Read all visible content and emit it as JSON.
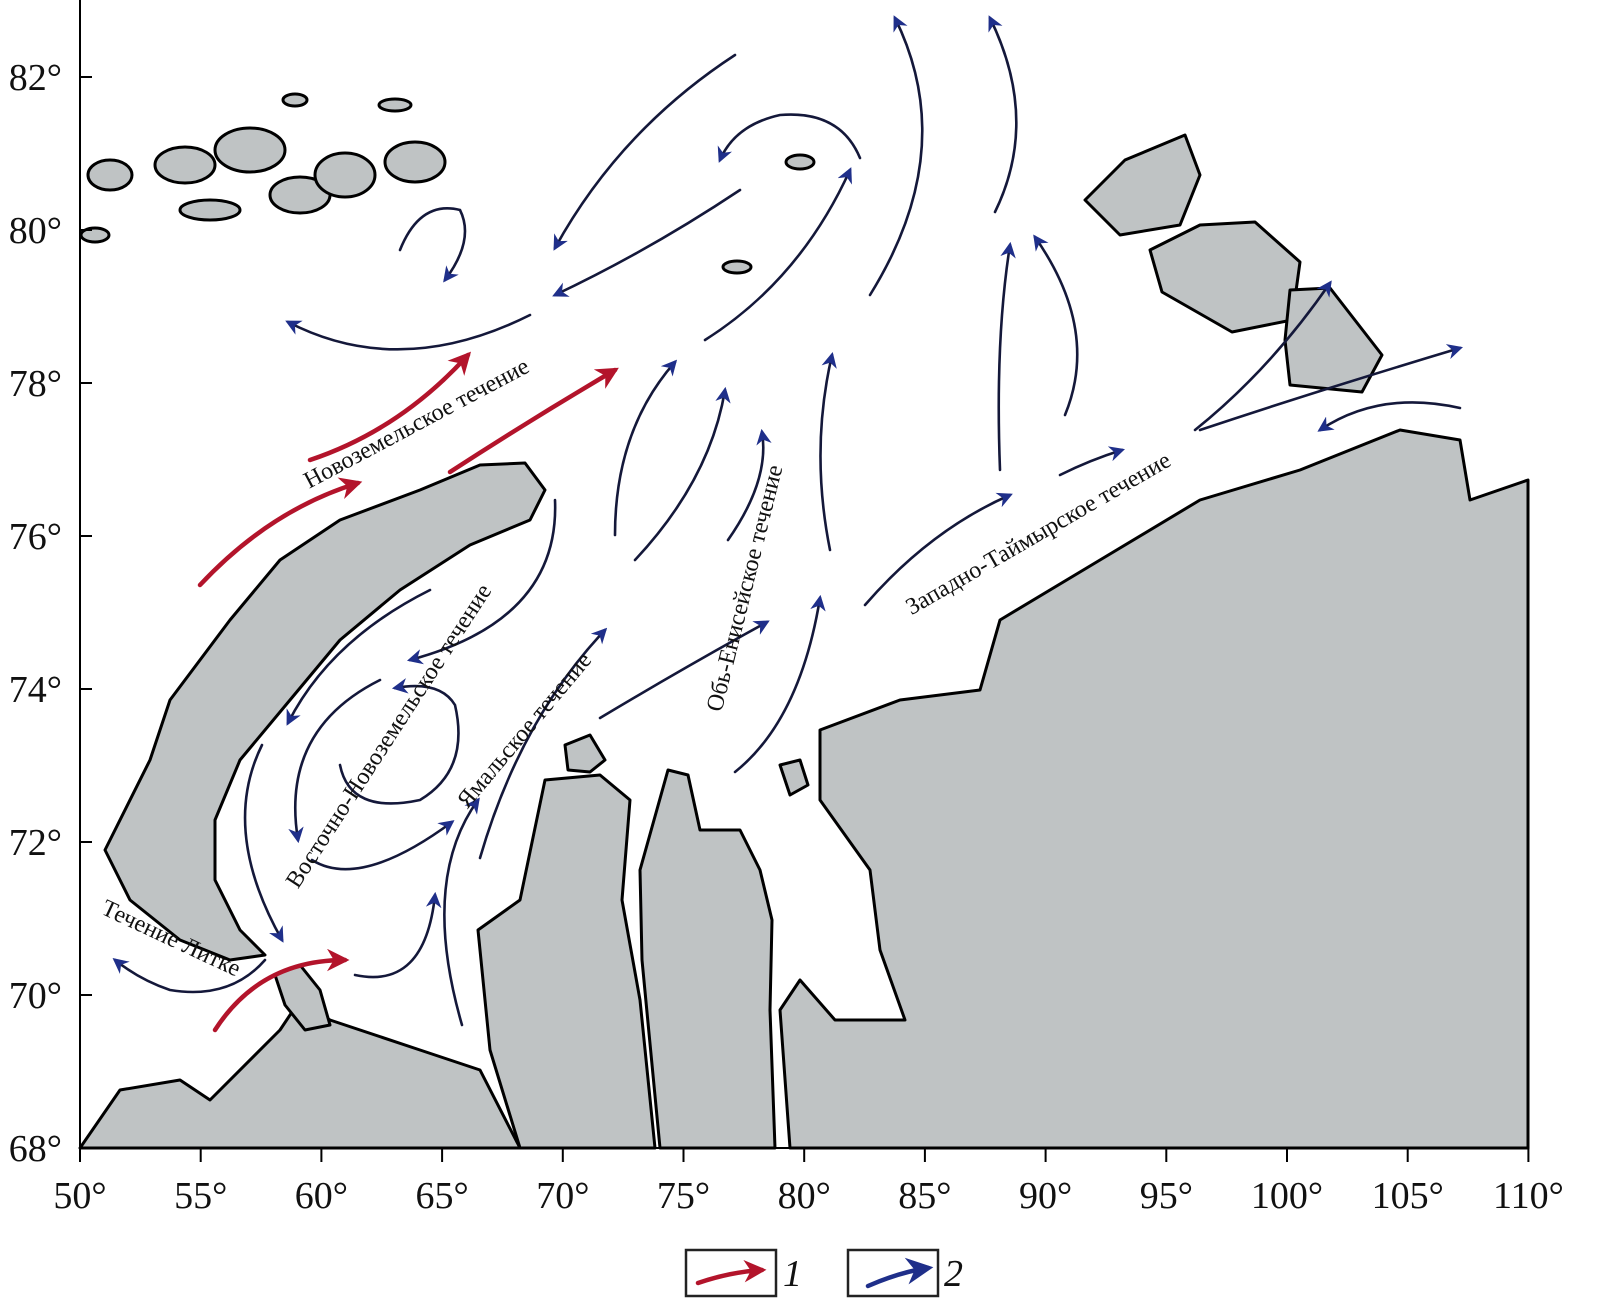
{
  "map": {
    "lat_ticks": [
      "68°",
      "70°",
      "72°",
      "74°",
      "76°",
      "78°",
      "80°",
      "82°"
    ],
    "lon_ticks": [
      "50°",
      "55°",
      "60°",
      "65°",
      "70°",
      "75°",
      "80°",
      "85°",
      "90°",
      "95°",
      "100°",
      "105°",
      "110°"
    ],
    "lat_range": [
      68,
      83
    ],
    "lon_range": [
      50,
      110
    ],
    "current_labels": {
      "novozemelskoe": "Новоземельское течение",
      "vostochno_novozemelskoe": "Восточно-Новоземельское течение",
      "yamalskoe": "Ямальское течение",
      "ob_eniseyskoe": "Обь-Енисейское течение",
      "zapadno_taymyrskoe": "Западно-Таймырское течение",
      "litke": "Течение Литке"
    },
    "colors": {
      "land": "#bfc3c4",
      "warm_current": "#b3142b",
      "cold_current": "#1f2f8a"
    }
  },
  "legend": {
    "items": [
      {
        "label": "1",
        "color": "#b3142b"
      },
      {
        "label": "2",
        "color": "#1f2f8a"
      }
    ]
  }
}
